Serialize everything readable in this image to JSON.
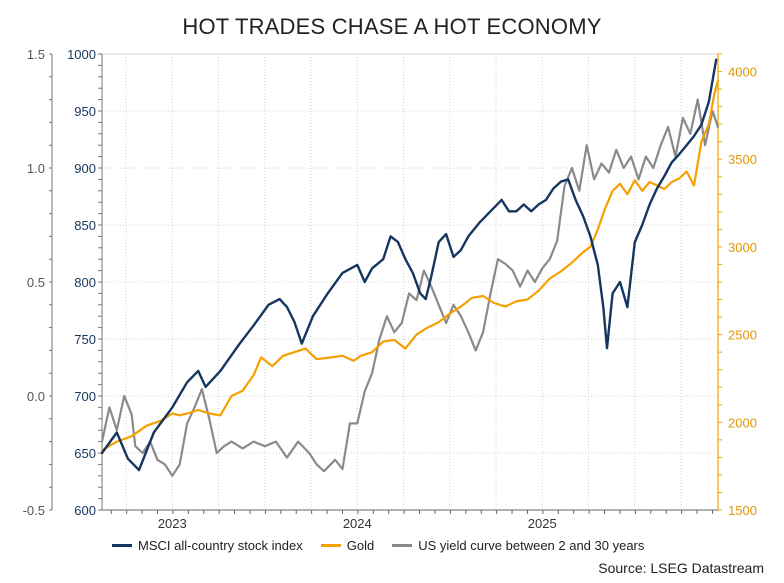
{
  "chart_data": {
    "type": "line",
    "title": "HOT TRADES CHASE A HOT ECONOMY",
    "source": "Source: LSEG Datastream",
    "colors": {
      "msci": "#14365f",
      "gold": "#f5a000",
      "curve": "#8a8a8a"
    },
    "x_ticks": [
      {
        "label": "2023",
        "t": 2023.0
      },
      {
        "label": "2024",
        "t": 2024.0
      },
      {
        "label": "2025",
        "t": 2025.0
      }
    ],
    "xlim": [
      2022.62,
      2025.95
    ],
    "axes": {
      "outer_left": {
        "ylim": [
          -0.5,
          1.5
        ],
        "ticks": [
          "-0.5",
          "0.0",
          "0.5",
          "1.0",
          "1.5"
        ],
        "tick_values": [
          -0.5,
          0.0,
          0.5,
          1.0,
          1.5
        ]
      },
      "inner_left": {
        "ylim": [
          600,
          1000
        ],
        "ticks": [
          "600",
          "650",
          "700",
          "750",
          "800",
          "850",
          "900",
          "950",
          "1000"
        ],
        "tick_values": [
          600,
          650,
          700,
          750,
          800,
          850,
          900,
          950,
          1000
        ]
      },
      "right": {
        "ylim": [
          1500,
          4100
        ],
        "ticks": [
          "1500",
          "2000",
          "2500",
          "3000",
          "3500",
          "4000"
        ],
        "tick_values": [
          1500,
          2000,
          2500,
          3000,
          3500,
          4000
        ]
      }
    },
    "series": [
      {
        "name": "MSCI all-country stock index",
        "axis": "inner_left",
        "color": "#14365f",
        "points": [
          [
            2022.62,
            650
          ],
          [
            2022.7,
            668
          ],
          [
            2022.76,
            645
          ],
          [
            2022.82,
            635
          ],
          [
            2022.9,
            668
          ],
          [
            2023.0,
            690
          ],
          [
            2023.08,
            712
          ],
          [
            2023.14,
            722
          ],
          [
            2023.18,
            708
          ],
          [
            2023.26,
            722
          ],
          [
            2023.36,
            745
          ],
          [
            2023.44,
            762
          ],
          [
            2023.52,
            780
          ],
          [
            2023.58,
            785
          ],
          [
            2023.62,
            778
          ],
          [
            2023.66,
            765
          ],
          [
            2023.7,
            746
          ],
          [
            2023.76,
            770
          ],
          [
            2023.84,
            790
          ],
          [
            2023.92,
            808
          ],
          [
            2024.0,
            815
          ],
          [
            2024.04,
            800
          ],
          [
            2024.08,
            812
          ],
          [
            2024.14,
            820
          ],
          [
            2024.18,
            840
          ],
          [
            2024.22,
            835
          ],
          [
            2024.26,
            820
          ],
          [
            2024.3,
            808
          ],
          [
            2024.34,
            790
          ],
          [
            2024.37,
            785
          ],
          [
            2024.4,
            805
          ],
          [
            2024.44,
            835
          ],
          [
            2024.48,
            842
          ],
          [
            2024.52,
            822
          ],
          [
            2024.56,
            828
          ],
          [
            2024.6,
            840
          ],
          [
            2024.66,
            852
          ],
          [
            2024.72,
            862
          ],
          [
            2024.78,
            872
          ],
          [
            2024.82,
            862
          ],
          [
            2024.86,
            862
          ],
          [
            2024.9,
            868
          ],
          [
            2024.94,
            862
          ],
          [
            2024.98,
            868
          ],
          [
            2025.02,
            872
          ],
          [
            2025.06,
            882
          ],
          [
            2025.1,
            888
          ],
          [
            2025.14,
            890
          ],
          [
            2025.18,
            872
          ],
          [
            2025.22,
            858
          ],
          [
            2025.26,
            840
          ],
          [
            2025.3,
            815
          ],
          [
            2025.33,
            778
          ],
          [
            2025.35,
            742
          ],
          [
            2025.38,
            790
          ],
          [
            2025.42,
            800
          ],
          [
            2025.46,
            778
          ],
          [
            2025.5,
            835
          ],
          [
            2025.54,
            850
          ],
          [
            2025.58,
            868
          ],
          [
            2025.62,
            882
          ],
          [
            2025.66,
            893
          ],
          [
            2025.7,
            905
          ],
          [
            2025.74,
            912
          ],
          [
            2025.78,
            920
          ],
          [
            2025.82,
            928
          ],
          [
            2025.86,
            938
          ],
          [
            2025.9,
            958
          ],
          [
            2025.94,
            995
          ]
        ]
      },
      {
        "name": "Gold",
        "axis": "right",
        "color": "#f5a000",
        "points": [
          [
            2022.62,
            1840
          ],
          [
            2022.7,
            1890
          ],
          [
            2022.78,
            1920
          ],
          [
            2022.86,
            1980
          ],
          [
            2022.94,
            2010
          ],
          [
            2023.0,
            2050
          ],
          [
            2023.04,
            2040
          ],
          [
            2023.08,
            2050
          ],
          [
            2023.14,
            2070
          ],
          [
            2023.2,
            2050
          ],
          [
            2023.26,
            2040
          ],
          [
            2023.32,
            2150
          ],
          [
            2023.38,
            2180
          ],
          [
            2023.44,
            2270
          ],
          [
            2023.48,
            2370
          ],
          [
            2023.54,
            2320
          ],
          [
            2023.6,
            2380
          ],
          [
            2023.66,
            2400
          ],
          [
            2023.72,
            2420
          ],
          [
            2023.78,
            2360
          ],
          [
            2023.86,
            2370
          ],
          [
            2023.92,
            2380
          ],
          [
            2023.98,
            2350
          ],
          [
            2024.02,
            2380
          ],
          [
            2024.08,
            2400
          ],
          [
            2024.14,
            2460
          ],
          [
            2024.2,
            2470
          ],
          [
            2024.26,
            2420
          ],
          [
            2024.32,
            2500
          ],
          [
            2024.38,
            2540
          ],
          [
            2024.44,
            2570
          ],
          [
            2024.5,
            2620
          ],
          [
            2024.56,
            2660
          ],
          [
            2024.62,
            2710
          ],
          [
            2024.68,
            2720
          ],
          [
            2024.74,
            2680
          ],
          [
            2024.8,
            2660
          ],
          [
            2024.86,
            2690
          ],
          [
            2024.92,
            2700
          ],
          [
            2024.98,
            2750
          ],
          [
            2025.04,
            2820
          ],
          [
            2025.1,
            2860
          ],
          [
            2025.16,
            2910
          ],
          [
            2025.22,
            2970
          ],
          [
            2025.26,
            3000
          ],
          [
            2025.3,
            3100
          ],
          [
            2025.34,
            3220
          ],
          [
            2025.38,
            3320
          ],
          [
            2025.42,
            3360
          ],
          [
            2025.46,
            3300
          ],
          [
            2025.5,
            3380
          ],
          [
            2025.54,
            3320
          ],
          [
            2025.58,
            3370
          ],
          [
            2025.62,
            3350
          ],
          [
            2025.66,
            3330
          ],
          [
            2025.7,
            3370
          ],
          [
            2025.74,
            3390
          ],
          [
            2025.78,
            3430
          ],
          [
            2025.82,
            3350
          ],
          [
            2025.86,
            3600
          ],
          [
            2025.9,
            3700
          ],
          [
            2025.93,
            3870
          ],
          [
            2025.95,
            3950
          ]
        ]
      },
      {
        "name": "US yield curve between 2 and 30 years",
        "axis": "outer_left",
        "color": "#8a8a8a",
        "points": [
          [
            2022.62,
            -0.2
          ],
          [
            2022.66,
            -0.05
          ],
          [
            2022.7,
            -0.15
          ],
          [
            2022.74,
            0.0
          ],
          [
            2022.78,
            -0.08
          ],
          [
            2022.8,
            -0.22
          ],
          [
            2022.84,
            -0.25
          ],
          [
            2022.88,
            -0.2
          ],
          [
            2022.92,
            -0.28
          ],
          [
            2022.96,
            -0.3
          ],
          [
            2023.0,
            -0.35
          ],
          [
            2023.04,
            -0.3
          ],
          [
            2023.08,
            -0.12
          ],
          [
            2023.12,
            -0.05
          ],
          [
            2023.16,
            0.03
          ],
          [
            2023.2,
            -0.1
          ],
          [
            2023.24,
            -0.25
          ],
          [
            2023.28,
            -0.22
          ],
          [
            2023.32,
            -0.2
          ],
          [
            2023.38,
            -0.23
          ],
          [
            2023.44,
            -0.2
          ],
          [
            2023.5,
            -0.22
          ],
          [
            2023.56,
            -0.2
          ],
          [
            2023.62,
            -0.27
          ],
          [
            2023.68,
            -0.2
          ],
          [
            2023.74,
            -0.25
          ],
          [
            2023.78,
            -0.3
          ],
          [
            2023.82,
            -0.33
          ],
          [
            2023.88,
            -0.28
          ],
          [
            2023.92,
            -0.32
          ],
          [
            2023.96,
            -0.12
          ],
          [
            2024.0,
            -0.12
          ],
          [
            2024.04,
            0.02
          ],
          [
            2024.08,
            0.1
          ],
          [
            2024.12,
            0.25
          ],
          [
            2024.16,
            0.35
          ],
          [
            2024.2,
            0.28
          ],
          [
            2024.24,
            0.32
          ],
          [
            2024.28,
            0.45
          ],
          [
            2024.32,
            0.42
          ],
          [
            2024.36,
            0.55
          ],
          [
            2024.4,
            0.48
          ],
          [
            2024.44,
            0.4
          ],
          [
            2024.48,
            0.32
          ],
          [
            2024.52,
            0.4
          ],
          [
            2024.56,
            0.35
          ],
          [
            2024.6,
            0.28
          ],
          [
            2024.64,
            0.2
          ],
          [
            2024.68,
            0.28
          ],
          [
            2024.72,
            0.45
          ],
          [
            2024.76,
            0.6
          ],
          [
            2024.8,
            0.58
          ],
          [
            2024.84,
            0.55
          ],
          [
            2024.88,
            0.48
          ],
          [
            2024.92,
            0.55
          ],
          [
            2024.96,
            0.5
          ],
          [
            2025.0,
            0.56
          ],
          [
            2025.04,
            0.6
          ],
          [
            2025.08,
            0.68
          ],
          [
            2025.12,
            0.92
          ],
          [
            2025.16,
            1.0
          ],
          [
            2025.2,
            0.9
          ],
          [
            2025.24,
            1.1
          ],
          [
            2025.28,
            0.95
          ],
          [
            2025.32,
            1.02
          ],
          [
            2025.36,
            0.98
          ],
          [
            2025.4,
            1.08
          ],
          [
            2025.44,
            1.0
          ],
          [
            2025.48,
            1.05
          ],
          [
            2025.52,
            0.95
          ],
          [
            2025.56,
            1.05
          ],
          [
            2025.6,
            1.0
          ],
          [
            2025.64,
            1.1
          ],
          [
            2025.68,
            1.18
          ],
          [
            2025.72,
            1.05
          ],
          [
            2025.76,
            1.22
          ],
          [
            2025.8,
            1.15
          ],
          [
            2025.84,
            1.3
          ],
          [
            2025.88,
            1.1
          ],
          [
            2025.92,
            1.25
          ],
          [
            2025.95,
            1.18
          ]
        ]
      }
    ],
    "legend": [
      {
        "label": "MSCI all-country stock index",
        "color": "#14365f"
      },
      {
        "label": "Gold",
        "color": "#f5a000"
      },
      {
        "label": "US yield curve between 2 and 30 years",
        "color": "#8a8a8a"
      }
    ]
  }
}
